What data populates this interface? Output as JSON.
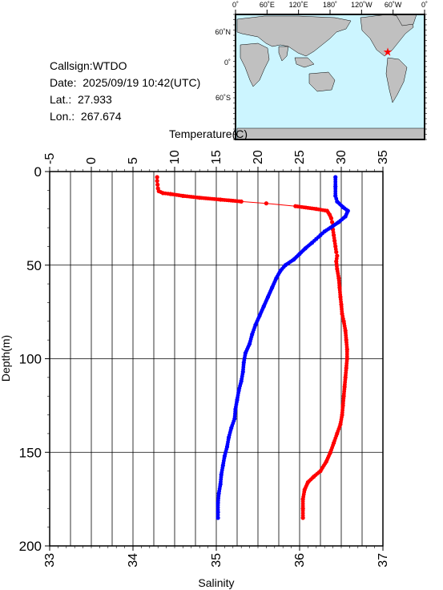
{
  "station": {
    "callsign": "Callsign:WTDO",
    "date": "Date:  2025/09/19 10:42(UTC)",
    "lat": "Lat.:  27.933",
    "lon": "Lon.:  267.674"
  },
  "map": {
    "lon_labels": [
      "0˚",
      "60˚E",
      "120˚E",
      "180˚",
      "120˚W",
      "60˚W",
      "0˚"
    ],
    "lat_labels": [
      "60˚N",
      "0˚",
      "60˚S"
    ],
    "ocean_color": "#ccf5ff",
    "land_color": "#c0c0c0",
    "marker_color": "#ff0000",
    "marker_icon": "star-icon"
  },
  "chart_data": {
    "type": "line",
    "xlabel_top": "Temperature(C)",
    "xlabel_bottom": "Salinity",
    "ylabel": "Depth(m)",
    "temperature_ticks": [
      "-5",
      "0",
      "5",
      "10",
      "15",
      "20",
      "25",
      "30",
      "35"
    ],
    "salinity_ticks": [
      "33",
      "34",
      "35",
      "36",
      "37"
    ],
    "depth_ticks": [
      "0",
      "50",
      "100",
      "150",
      "200"
    ],
    "temperature_range": [
      -5,
      35
    ],
    "salinity_range": [
      33,
      37
    ],
    "depth_range": [
      0,
      200
    ],
    "grid": true,
    "series": [
      {
        "quantity": "temperature",
        "color": "#ff0000",
        "points": [
          [
            7.9,
            3
          ],
          [
            7.9,
            5
          ],
          [
            7.95,
            7
          ],
          [
            8.0,
            9
          ],
          [
            8.1,
            10.5
          ],
          [
            8.6,
            11.5
          ],
          [
            9.5,
            12
          ],
          [
            11,
            13
          ],
          [
            13,
            14
          ],
          [
            15.5,
            15
          ],
          [
            18,
            16
          ],
          [
            21,
            17
          ],
          [
            24.5,
            18.5
          ],
          [
            27,
            20
          ],
          [
            28.3,
            21
          ],
          [
            28.6,
            23
          ],
          [
            28.8,
            25
          ],
          [
            28.9,
            27
          ],
          [
            29.0,
            29
          ],
          [
            29.0,
            31
          ],
          [
            29.1,
            34
          ],
          [
            29.2,
            37
          ],
          [
            29.3,
            40
          ],
          [
            29.4,
            43
          ],
          [
            29.5,
            45
          ],
          [
            29.4,
            48
          ],
          [
            29.5,
            52
          ],
          [
            29.7,
            57
          ],
          [
            29.8,
            62
          ],
          [
            29.9,
            67
          ],
          [
            30.0,
            71
          ],
          [
            30.1,
            76
          ],
          [
            30.3,
            80
          ],
          [
            30.5,
            85
          ],
          [
            30.6,
            90
          ],
          [
            30.7,
            95
          ],
          [
            30.7,
            100
          ],
          [
            30.6,
            105
          ],
          [
            30.5,
            110
          ],
          [
            30.4,
            115
          ],
          [
            30.3,
            120
          ],
          [
            30.2,
            125
          ],
          [
            30.1,
            130
          ],
          [
            29.9,
            135
          ],
          [
            29.5,
            140
          ],
          [
            29.1,
            145
          ],
          [
            28.7,
            150
          ],
          [
            28.2,
            155
          ],
          [
            27.5,
            160
          ],
          [
            26.7,
            163
          ],
          [
            26.0,
            166
          ],
          [
            25.6,
            170
          ],
          [
            25.4,
            175
          ],
          [
            25.4,
            180
          ],
          [
            25.4,
            185
          ]
        ]
      },
      {
        "quantity": "salinity",
        "color": "#0000ff",
        "points": [
          [
            36.43,
            3
          ],
          [
            36.43,
            8
          ],
          [
            36.43,
            13
          ],
          [
            36.45,
            16
          ],
          [
            36.52,
            19
          ],
          [
            36.58,
            21
          ],
          [
            36.55,
            24
          ],
          [
            36.47,
            27
          ],
          [
            36.37,
            30
          ],
          [
            36.3,
            32
          ],
          [
            36.25,
            34
          ],
          [
            36.2,
            36
          ],
          [
            36.15,
            38
          ],
          [
            36.07,
            41
          ],
          [
            36.0,
            44
          ],
          [
            35.93,
            47
          ],
          [
            35.83,
            50
          ],
          [
            35.77,
            53
          ],
          [
            35.72,
            57
          ],
          [
            35.67,
            62
          ],
          [
            35.62,
            67
          ],
          [
            35.57,
            72
          ],
          [
            35.52,
            77
          ],
          [
            35.47,
            82
          ],
          [
            35.43,
            87
          ],
          [
            35.4,
            92
          ],
          [
            35.35,
            97
          ],
          [
            35.33,
            102
          ],
          [
            35.32,
            107
          ],
          [
            35.3,
            112
          ],
          [
            35.27,
            117
          ],
          [
            35.25,
            122
          ],
          [
            35.23,
            127
          ],
          [
            35.22,
            132
          ],
          [
            35.18,
            137
          ],
          [
            35.15,
            142
          ],
          [
            35.13,
            147
          ],
          [
            35.1,
            152
          ],
          [
            35.08,
            157
          ],
          [
            35.06,
            162
          ],
          [
            35.05,
            167
          ],
          [
            35.03,
            172
          ],
          [
            35.02,
            177
          ],
          [
            35.02,
            182
          ],
          [
            35.02,
            185
          ]
        ]
      }
    ]
  }
}
